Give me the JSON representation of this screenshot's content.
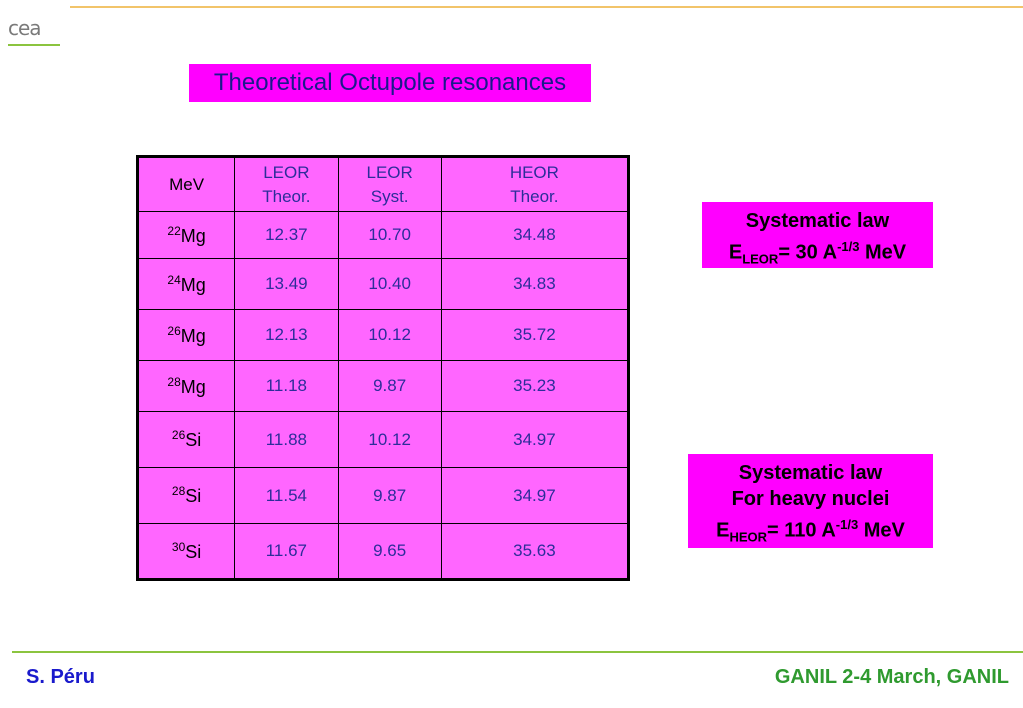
{
  "logo": {
    "text": "cea"
  },
  "title": "Theoretical Octupole resonances",
  "table": {
    "header": {
      "col1": "MeV",
      "col2_line1": "LEOR",
      "col2_line2": "Theor.",
      "col3_line1": "LEOR",
      "col3_line2": "Syst.",
      "col4_line1": "HEOR",
      "col4_line2": "Theor."
    },
    "rows": [
      {
        "mass": "22",
        "element": "Mg",
        "leor_theor": "12.37",
        "leor_syst": "10.70",
        "heor_theor": "34.48"
      },
      {
        "mass": "24",
        "element": "Mg",
        "leor_theor": "13.49",
        "leor_syst": "10.40",
        "heor_theor": "34.83"
      },
      {
        "mass": "26",
        "element": "Mg",
        "leor_theor": "12.13",
        "leor_syst": "10.12",
        "heor_theor": "35.72"
      },
      {
        "mass": "28",
        "element": "Mg",
        "leor_theor": "11.18",
        "leor_syst": "9.87",
        "heor_theor": "35.23"
      },
      {
        "mass": "26",
        "element": "Si",
        "leor_theor": "11.88",
        "leor_syst": "10.12",
        "heor_theor": "34.97"
      },
      {
        "mass": "28",
        "element": "Si",
        "leor_theor": "11.54",
        "leor_syst": "9.87",
        "heor_theor": "34.97"
      },
      {
        "mass": "30",
        "element": "Si",
        "leor_theor": "11.67",
        "leor_syst": "9.65",
        "heor_theor": "35.63"
      }
    ]
  },
  "box1": {
    "line1": "Systematic law",
    "e": "E",
    "sub": "LEOR",
    "eq": "= 30 A",
    "sup": "-1/3",
    "unit": " MeV"
  },
  "box2": {
    "line1": "Systematic law",
    "line2": "For heavy nuclei",
    "e": "E",
    "sub": "HEOR",
    "eq": "= 110 A",
    "sup": "-1/3",
    "unit": " MeV"
  },
  "footer": {
    "left": "S. Péru",
    "right": "GANIL 2-4 March, GANIL"
  },
  "colors": {
    "magenta": "#ff00ff",
    "table_bg": "#ff66ff",
    "green": "#8bc43f",
    "orange": "#f2c46a"
  }
}
